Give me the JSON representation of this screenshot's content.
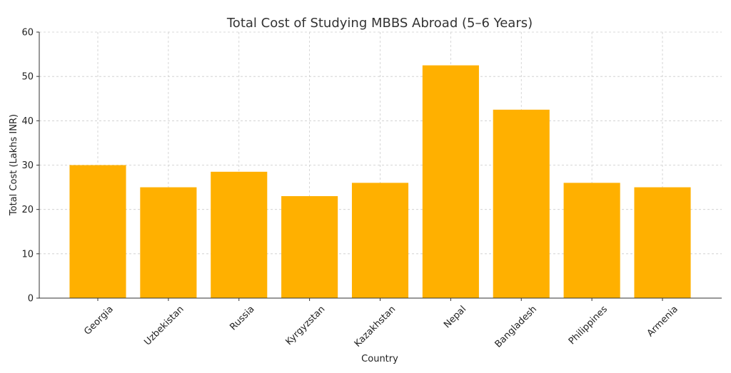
{
  "chart_data": {
    "type": "bar",
    "title": "Total Cost of Studying MBBS Abroad (5–6 Years)",
    "xlabel": "Country",
    "ylabel": "Total Cost (Lakhs INR)",
    "categories": [
      "Georgia",
      "Uzbekistan",
      "Russia",
      "Kyrgyzstan",
      "Kazakhstan",
      "Nepal",
      "Bangladesh",
      "Philippines",
      "Armenia"
    ],
    "values": [
      30,
      25,
      28.5,
      23,
      26,
      52.5,
      42.5,
      26,
      25
    ],
    "ylim": [
      0,
      60
    ],
    "yticks": [
      "0",
      "10",
      "20",
      "30",
      "40",
      "50",
      "60"
    ],
    "bar_color": "#FFB000",
    "grid": true
  }
}
